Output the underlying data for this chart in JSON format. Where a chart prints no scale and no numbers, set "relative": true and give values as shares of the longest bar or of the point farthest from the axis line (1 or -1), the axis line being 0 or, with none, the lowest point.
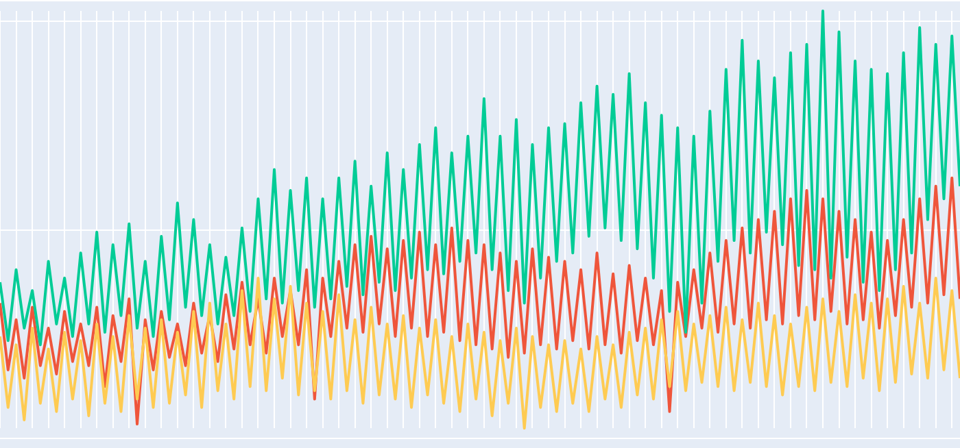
{
  "chart_data": {
    "type": "line",
    "relative": true,
    "grid": true,
    "legend": false,
    "categories": [
      null,
      null,
      null,
      null,
      null,
      null,
      null,
      null,
      null,
      null,
      null,
      null,
      null,
      null,
      null,
      null,
      null,
      null,
      null,
      null,
      null,
      null,
      null,
      null,
      null,
      null,
      null,
      null,
      null,
      null,
      null,
      null,
      null,
      null,
      null,
      null,
      null,
      null,
      null,
      null,
      null,
      null,
      null,
      null,
      null,
      null,
      null,
      null,
      null,
      null,
      null,
      null,
      null,
      null,
      null,
      null,
      null,
      null,
      null,
      null,
      null,
      null,
      null,
      null,
      null,
      null,
      null,
      null,
      null,
      null,
      null,
      null,
      null,
      null,
      null,
      null,
      null,
      null,
      null,
      null,
      null,
      null,
      null,
      null,
      null,
      null,
      null,
      null,
      null,
      null,
      null,
      null,
      null,
      null,
      null,
      null,
      null,
      null,
      null,
      null,
      null,
      null,
      null,
      null,
      null,
      null,
      null,
      null,
      null,
      null,
      null,
      null,
      null,
      null,
      null,
      null,
      null,
      null,
      null,
      null
    ],
    "series": [
      {
        "color": "#ef553b",
        "values": [
          0.3,
          0.14,
          0.26,
          0.12,
          0.29,
          0.15,
          0.24,
          0.13,
          0.28,
          0.16,
          0.25,
          0.15,
          0.29,
          0.1,
          0.27,
          0.16,
          0.31,
          0.01,
          0.26,
          0.14,
          0.28,
          0.17,
          0.25,
          0.15,
          0.3,
          0.18,
          0.27,
          0.16,
          0.32,
          0.19,
          0.35,
          0.2,
          0.31,
          0.18,
          0.36,
          0.22,
          0.33,
          0.2,
          0.38,
          0.07,
          0.36,
          0.22,
          0.4,
          0.24,
          0.44,
          0.23,
          0.46,
          0.25,
          0.43,
          0.22,
          0.45,
          0.24,
          0.47,
          0.22,
          0.44,
          0.23,
          0.48,
          0.21,
          0.45,
          0.2,
          0.44,
          0.19,
          0.42,
          0.17,
          0.4,
          0.18,
          0.43,
          0.2,
          0.41,
          0.19,
          0.4,
          0.21,
          0.38,
          0.19,
          0.42,
          0.2,
          0.37,
          0.18,
          0.39,
          0.21,
          0.36,
          0.2,
          0.33,
          0.04,
          0.35,
          0.22,
          0.38,
          0.24,
          0.42,
          0.23,
          0.45,
          0.25,
          0.48,
          0.24,
          0.5,
          0.26,
          0.52,
          0.25,
          0.55,
          0.27,
          0.57,
          0.26,
          0.55,
          0.28,
          0.52,
          0.25,
          0.5,
          0.26,
          0.47,
          0.24,
          0.45,
          0.27,
          0.5,
          0.29,
          0.55,
          0.3,
          0.58,
          0.32,
          0.6,
          0.31
        ]
      },
      {
        "color": "#00cc96",
        "values": [
          0.35,
          0.21,
          0.38,
          0.24,
          0.33,
          0.2,
          0.4,
          0.25,
          0.36,
          0.22,
          0.42,
          0.25,
          0.47,
          0.23,
          0.44,
          0.27,
          0.49,
          0.24,
          0.4,
          0.22,
          0.46,
          0.26,
          0.54,
          0.29,
          0.5,
          0.27,
          0.44,
          0.25,
          0.41,
          0.27,
          0.48,
          0.28,
          0.55,
          0.31,
          0.62,
          0.3,
          0.57,
          0.33,
          0.6,
          0.29,
          0.55,
          0.31,
          0.6,
          0.34,
          0.64,
          0.32,
          0.58,
          0.35,
          0.66,
          0.33,
          0.62,
          0.36,
          0.68,
          0.38,
          0.72,
          0.37,
          0.66,
          0.4,
          0.7,
          0.42,
          0.79,
          0.38,
          0.7,
          0.33,
          0.74,
          0.3,
          0.68,
          0.36,
          0.72,
          0.4,
          0.73,
          0.42,
          0.78,
          0.46,
          0.82,
          0.48,
          0.8,
          0.45,
          0.85,
          0.43,
          0.78,
          0.36,
          0.75,
          0.28,
          0.72,
          0.23,
          0.7,
          0.3,
          0.76,
          0.4,
          0.86,
          0.45,
          0.93,
          0.42,
          0.88,
          0.47,
          0.84,
          0.44,
          0.9,
          0.39,
          0.92,
          0.38,
          1.0,
          0.36,
          0.95,
          0.41,
          0.88,
          0.35,
          0.86,
          0.33,
          0.85,
          0.38,
          0.9,
          0.42,
          0.96,
          0.5,
          0.92,
          0.55,
          0.94,
          0.58
        ]
      },
      {
        "color": "#fecb52",
        "values": [
          0.22,
          0.05,
          0.2,
          0.02,
          0.24,
          0.06,
          0.19,
          0.04,
          0.23,
          0.07,
          0.21,
          0.03,
          0.25,
          0.06,
          0.22,
          0.04,
          0.27,
          0.07,
          0.24,
          0.05,
          0.26,
          0.06,
          0.23,
          0.08,
          0.28,
          0.05,
          0.3,
          0.09,
          0.25,
          0.07,
          0.33,
          0.1,
          0.36,
          0.09,
          0.31,
          0.12,
          0.34,
          0.08,
          0.3,
          0.09,
          0.28,
          0.07,
          0.32,
          0.09,
          0.26,
          0.06,
          0.29,
          0.08,
          0.25,
          0.07,
          0.27,
          0.05,
          0.24,
          0.08,
          0.26,
          0.06,
          0.22,
          0.04,
          0.25,
          0.07,
          0.23,
          0.03,
          0.21,
          0.06,
          0.24,
          0.0,
          0.22,
          0.05,
          0.2,
          0.04,
          0.21,
          0.06,
          0.19,
          0.04,
          0.22,
          0.07,
          0.2,
          0.05,
          0.23,
          0.08,
          0.24,
          0.07,
          0.26,
          0.1,
          0.28,
          0.09,
          0.25,
          0.11,
          0.27,
          0.1,
          0.29,
          0.09,
          0.26,
          0.11,
          0.3,
          0.1,
          0.27,
          0.08,
          0.25,
          0.1,
          0.29,
          0.09,
          0.31,
          0.11,
          0.28,
          0.1,
          0.32,
          0.12,
          0.3,
          0.09,
          0.31,
          0.11,
          0.34,
          0.13,
          0.3,
          0.12,
          0.36,
          0.14,
          0.33,
          0.12
        ]
      }
    ]
  }
}
